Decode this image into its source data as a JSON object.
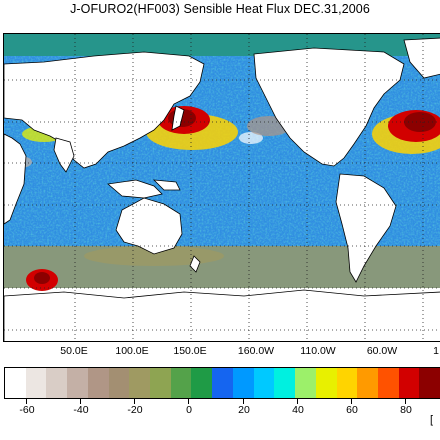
{
  "map_title": "J-OFURO2(HF003) Sensible Heat Flux DEC.31,2006",
  "lon_labels": [
    "50.0E",
    "100.0E",
    "150.0E",
    "160.0W",
    "110.0W",
    "60.0W",
    "1"
  ],
  "colorbar_labels": [
    "-60",
    "-40",
    "-20",
    "0",
    "20",
    "40",
    "60",
    "80"
  ],
  "unit_fragment": "[",
  "colors": {
    "land": "#ffffff",
    "coast": "#000000",
    "ocean_base": "#2f8fe0",
    "gridline": "#222222"
  },
  "colorbar_colors": [
    "#ffffff",
    "#ece6e2",
    "#d9cdc6",
    "#c4b0a6",
    "#b09686",
    "#a38f72",
    "#9f9a62",
    "#8ea452",
    "#54a24a",
    "#1f9b46",
    "#1565f0",
    "#0099ff",
    "#00c9ff",
    "#00f0e0",
    "#9cf06a",
    "#e8f000",
    "#ffd400",
    "#ff9a00",
    "#ff5200",
    "#d20000",
    "#8c0000"
  ]
}
